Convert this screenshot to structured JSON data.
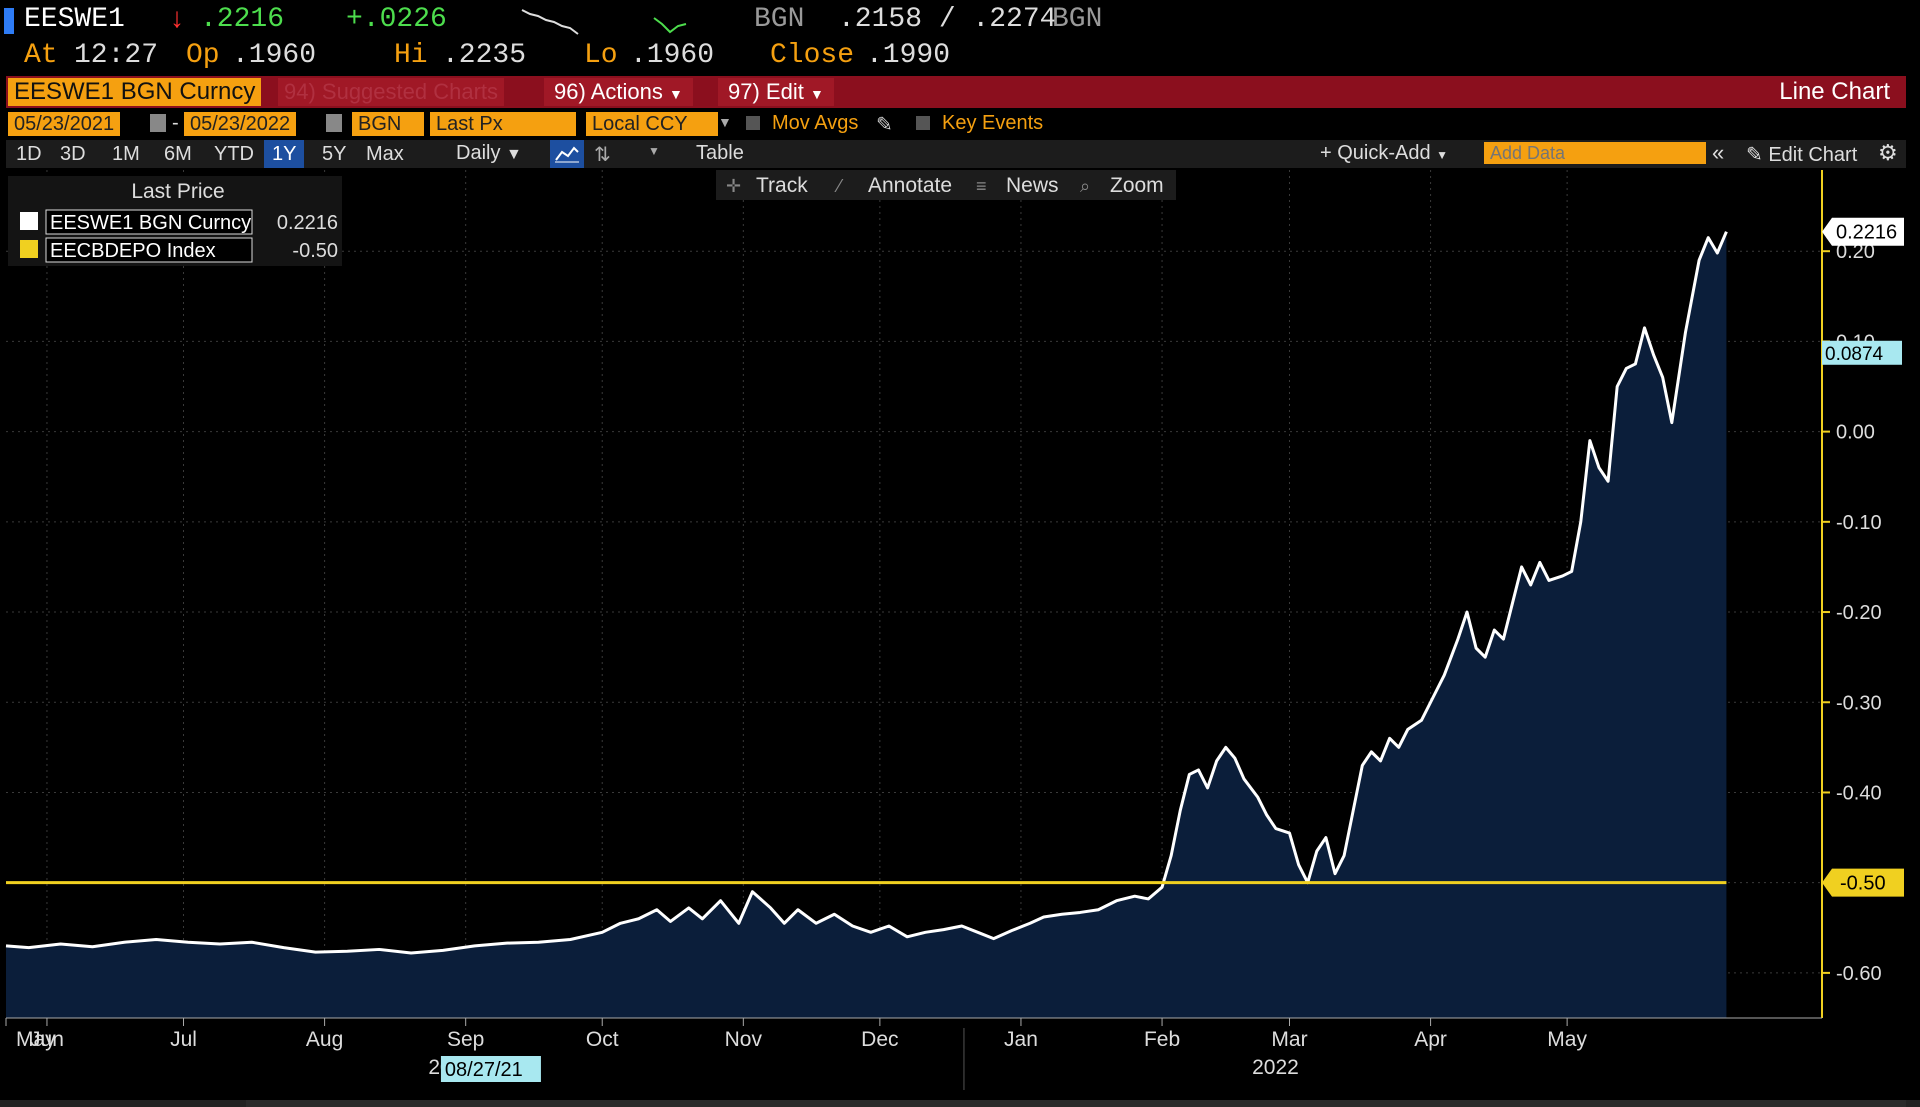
{
  "quote": {
    "ticker": "EESWE1",
    "arrow": "↓",
    "last": ".2216",
    "change": "+.0226",
    "source1": "BGN",
    "bidask": ".2158 / .2274",
    "source2": "BGN",
    "at_label": "At",
    "at_time": "12:27",
    "op_label": "Op",
    "op": ".1960",
    "hi_label": "Hi",
    "hi": ".2235",
    "lo_label": "Lo",
    "lo": ".1960",
    "close_label": "Close",
    "close": ".1990"
  },
  "titlebar": {
    "security": "EESWE1 BGN Curncy",
    "suggested": "94) Suggested Charts",
    "actions_num": "96)",
    "actions": "Actions",
    "edit_num": "97)",
    "edit": "Edit",
    "chart_type": "Line Chart"
  },
  "settings": {
    "start_date": "05/23/2021",
    "end_date": "05/23/2022",
    "source": "BGN",
    "field": "Last Px",
    "currency": "Local CCY",
    "mov_avgs": "Mov Avgs",
    "key_events": "Key Events"
  },
  "periods": [
    "1D",
    "3D",
    "1M",
    "6M",
    "YTD",
    "1Y",
    "5Y",
    "Max"
  ],
  "active_period": "1Y",
  "frequency": "Daily",
  "table_label": "Table",
  "quick_add": "+ Quick-Add",
  "add_data_placeholder": "Add Data",
  "edit_chart": "Edit Chart",
  "tools": [
    "Track",
    "Annotate",
    "News",
    "Zoom"
  ],
  "legend": {
    "header": "Last Price",
    "items": [
      {
        "label": "EESWE1 BGN Curncy",
        "value": "0.2216",
        "color": "#ffffff"
      },
      {
        "label": "EECBDEPO Index",
        "value": "-0.50",
        "color": "#f0d020"
      }
    ]
  },
  "crosshair_date": "08/27/21",
  "chart_data": {
    "type": "area",
    "ylim": [
      -0.65,
      0.29
    ],
    "yticks": [
      0.2,
      0.1,
      0.0,
      -0.1,
      -0.2,
      -0.3,
      -0.4,
      -0.5,
      -0.6
    ],
    "ytick_labels": [
      "0.20",
      "0.10",
      "0.00",
      "-0.10",
      "-0.20",
      "-0.30",
      "-0.40",
      "-0.50",
      "-0.60"
    ],
    "xlim": [
      "2021-05-23",
      "2022-06-26"
    ],
    "month_ticks": [
      {
        "date": "2021-05-23",
        "label": "May"
      },
      {
        "date": "2021-06-01",
        "label": "Jun"
      },
      {
        "date": "2021-07-01",
        "label": "Jul"
      },
      {
        "date": "2021-08-01",
        "label": "Aug"
      },
      {
        "date": "2021-09-01",
        "label": "Sep"
      },
      {
        "date": "2021-10-01",
        "label": "Oct"
      },
      {
        "date": "2021-11-01",
        "label": "Nov"
      },
      {
        "date": "2021-12-01",
        "label": "Dec"
      },
      {
        "date": "2022-01-01",
        "label": "Jan"
      },
      {
        "date": "2022-02-01",
        "label": "Feb"
      },
      {
        "date": "2022-03-01",
        "label": "Mar"
      },
      {
        "date": "2022-04-01",
        "label": "Apr"
      },
      {
        "date": "2022-05-01",
        "label": "May"
      }
    ],
    "year_labels": [
      {
        "date": "2021-09-01",
        "label": "2021"
      },
      {
        "date": "2022-03-01",
        "label": "2022"
      }
    ],
    "year_divider": "2022-01-01",
    "series": [
      {
        "name": "EESWE1 BGN Curncy",
        "color": "#ffffff",
        "fill": "#0b1e3a",
        "last_label": "0.2216",
        "points": [
          [
            "2021-05-23",
            -0.57
          ],
          [
            "2021-05-28",
            -0.572
          ],
          [
            "2021-06-04",
            -0.568
          ],
          [
            "2021-06-11",
            -0.571
          ],
          [
            "2021-06-18",
            -0.566
          ],
          [
            "2021-06-25",
            -0.563
          ],
          [
            "2021-07-02",
            -0.566
          ],
          [
            "2021-07-09",
            -0.568
          ],
          [
            "2021-07-16",
            -0.566
          ],
          [
            "2021-07-23",
            -0.572
          ],
          [
            "2021-07-30",
            -0.577
          ],
          [
            "2021-08-06",
            -0.576
          ],
          [
            "2021-08-13",
            -0.574
          ],
          [
            "2021-08-20",
            -0.578
          ],
          [
            "2021-08-27",
            -0.575
          ],
          [
            "2021-09-03",
            -0.57
          ],
          [
            "2021-09-10",
            -0.567
          ],
          [
            "2021-09-17",
            -0.566
          ],
          [
            "2021-09-24",
            -0.563
          ],
          [
            "2021-10-01",
            -0.555
          ],
          [
            "2021-10-05",
            -0.545
          ],
          [
            "2021-10-09",
            -0.54
          ],
          [
            "2021-10-13",
            -0.53
          ],
          [
            "2021-10-16",
            -0.543
          ],
          [
            "2021-10-20",
            -0.528
          ],
          [
            "2021-10-23",
            -0.54
          ],
          [
            "2021-10-27",
            -0.52
          ],
          [
            "2021-10-31",
            -0.545
          ],
          [
            "2021-11-03",
            -0.51
          ],
          [
            "2021-11-07",
            -0.528
          ],
          [
            "2021-11-10",
            -0.545
          ],
          [
            "2021-11-13",
            -0.53
          ],
          [
            "2021-11-17",
            -0.545
          ],
          [
            "2021-11-21",
            -0.535
          ],
          [
            "2021-11-25",
            -0.548
          ],
          [
            "2021-11-29",
            -0.555
          ],
          [
            "2021-12-03",
            -0.548
          ],
          [
            "2021-12-07",
            -0.56
          ],
          [
            "2021-12-11",
            -0.555
          ],
          [
            "2021-12-15",
            -0.552
          ],
          [
            "2021-12-19",
            -0.548
          ],
          [
            "2021-12-23",
            -0.556
          ],
          [
            "2021-12-26",
            -0.562
          ],
          [
            "2021-12-30",
            -0.553
          ],
          [
            "2022-01-03",
            -0.545
          ],
          [
            "2022-01-06",
            -0.538
          ],
          [
            "2022-01-10",
            -0.535
          ],
          [
            "2022-01-14",
            -0.533
          ],
          [
            "2022-01-18",
            -0.53
          ],
          [
            "2022-01-22",
            -0.52
          ],
          [
            "2022-01-26",
            -0.515
          ],
          [
            "2022-01-29",
            -0.518
          ],
          [
            "2022-02-01",
            -0.505
          ],
          [
            "2022-02-03",
            -0.47
          ],
          [
            "2022-02-05",
            -0.42
          ],
          [
            "2022-02-07",
            -0.38
          ],
          [
            "2022-02-09",
            -0.375
          ],
          [
            "2022-02-11",
            -0.395
          ],
          [
            "2022-02-13",
            -0.365
          ],
          [
            "2022-02-15",
            -0.35
          ],
          [
            "2022-02-17",
            -0.362
          ],
          [
            "2022-02-19",
            -0.385
          ],
          [
            "2022-02-22",
            -0.405
          ],
          [
            "2022-02-24",
            -0.425
          ],
          [
            "2022-02-26",
            -0.44
          ],
          [
            "2022-03-01",
            -0.445
          ],
          [
            "2022-03-03",
            -0.48
          ],
          [
            "2022-03-05",
            -0.5
          ],
          [
            "2022-03-07",
            -0.465
          ],
          [
            "2022-03-09",
            -0.45
          ],
          [
            "2022-03-11",
            -0.49
          ],
          [
            "2022-03-13",
            -0.47
          ],
          [
            "2022-03-15",
            -0.42
          ],
          [
            "2022-03-17",
            -0.37
          ],
          [
            "2022-03-19",
            -0.355
          ],
          [
            "2022-03-21",
            -0.365
          ],
          [
            "2022-03-23",
            -0.34
          ],
          [
            "2022-03-25",
            -0.35
          ],
          [
            "2022-03-27",
            -0.33
          ],
          [
            "2022-03-30",
            -0.32
          ],
          [
            "2022-04-01",
            -0.3
          ],
          [
            "2022-04-04",
            -0.27
          ],
          [
            "2022-04-07",
            -0.23
          ],
          [
            "2022-04-09",
            -0.2
          ],
          [
            "2022-04-11",
            -0.24
          ],
          [
            "2022-04-13",
            -0.25
          ],
          [
            "2022-04-15",
            -0.22
          ],
          [
            "2022-04-17",
            -0.23
          ],
          [
            "2022-04-19",
            -0.19
          ],
          [
            "2022-04-21",
            -0.15
          ],
          [
            "2022-04-23",
            -0.17
          ],
          [
            "2022-04-25",
            -0.145
          ],
          [
            "2022-04-27",
            -0.165
          ],
          [
            "2022-04-30",
            -0.16
          ],
          [
            "2022-05-02",
            -0.155
          ],
          [
            "2022-05-04",
            -0.1
          ],
          [
            "2022-05-06",
            -0.01
          ],
          [
            "2022-05-08",
            -0.04
          ],
          [
            "2022-05-10",
            -0.055
          ],
          [
            "2022-05-12",
            0.05
          ],
          [
            "2022-05-14",
            0.07
          ],
          [
            "2022-05-16",
            0.075
          ],
          [
            "2022-05-18",
            0.115
          ],
          [
            "2022-05-20",
            0.085
          ],
          [
            "2022-05-22",
            0.06
          ],
          [
            "2022-05-24",
            0.01
          ],
          [
            "2022-05-27",
            0.11
          ],
          [
            "2022-05-30",
            0.19
          ],
          [
            "2022-06-01",
            0.215
          ],
          [
            "2022-06-03",
            0.198
          ],
          [
            "2022-06-05",
            0.2216
          ]
        ]
      },
      {
        "name": "EECBDEPO Index",
        "color": "#f0d020",
        "last_label": "-0.50",
        "points": [
          [
            "2021-05-23",
            -0.5
          ],
          [
            "2022-06-05",
            -0.5
          ]
        ]
      }
    ],
    "extra_label": {
      "value": 0.0874,
      "label": "0.0874"
    }
  }
}
